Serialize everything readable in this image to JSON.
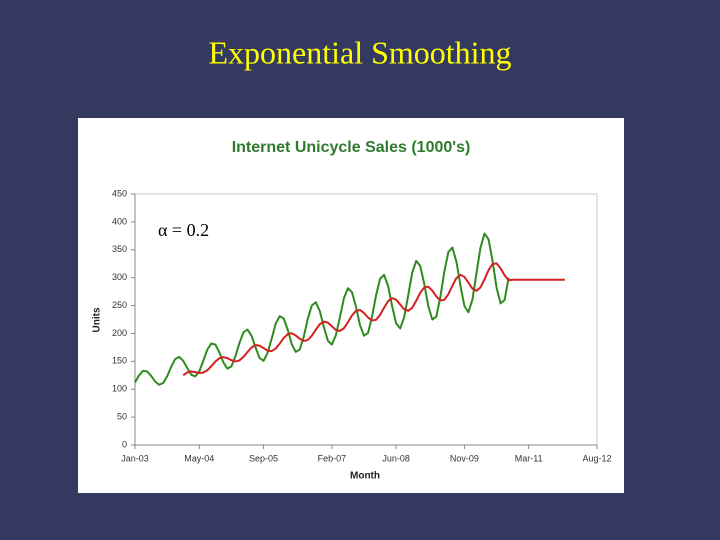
{
  "slide_title": "Exponential Smoothing",
  "chart_data": {
    "type": "line",
    "title": "Internet Unicycle Sales (1000's)",
    "xlabel": "Month",
    "ylabel": "Units",
    "annotation": "α = 0.2",
    "x": [
      "Jan-03",
      "Feb-03",
      "Mar-03",
      "Apr-03",
      "May-03",
      "Jun-03",
      "Jul-03",
      "Aug-03",
      "Sep-03",
      "Oct-03",
      "Nov-03",
      "Dec-03",
      "Jan-04",
      "Feb-04",
      "Mar-04",
      "Apr-04",
      "May-04",
      "Jun-04",
      "Jul-04",
      "Aug-04",
      "Sep-04",
      "Oct-04",
      "Nov-04",
      "Dec-04",
      "Jan-05",
      "Feb-05",
      "Mar-05",
      "Apr-05",
      "May-05",
      "Jun-05",
      "Jul-05",
      "Aug-05",
      "Sep-05",
      "Oct-05",
      "Nov-05",
      "Dec-05",
      "Jan-06",
      "Feb-06",
      "Mar-06",
      "Apr-06",
      "May-06",
      "Jun-06",
      "Jul-06",
      "Aug-06",
      "Sep-06",
      "Oct-06",
      "Nov-06",
      "Dec-06",
      "Jan-07",
      "Feb-07",
      "Mar-07",
      "Apr-07",
      "May-07",
      "Jun-07",
      "Jul-07",
      "Aug-07",
      "Sep-07",
      "Oct-07",
      "Nov-07",
      "Dec-07",
      "Jan-08",
      "Feb-08",
      "Mar-08",
      "Apr-08",
      "May-08",
      "Jun-08",
      "Jul-08",
      "Aug-08",
      "Sep-08",
      "Oct-08",
      "Nov-08",
      "Dec-08",
      "Jan-09",
      "Feb-09",
      "Mar-09",
      "Apr-09",
      "May-09",
      "Jun-09",
      "Jul-09",
      "Aug-09",
      "Sep-09",
      "Oct-09",
      "Nov-09",
      "Dec-09",
      "Jan-10",
      "Feb-10",
      "Mar-10",
      "Apr-10",
      "May-10",
      "Jun-10",
      "Jul-10",
      "Aug-10",
      "Sep-10",
      "Oct-10",
      "Nov-10",
      "Dec-10",
      "Jan-11",
      "Feb-11",
      "Mar-11",
      "Apr-11",
      "May-11",
      "Jun-11",
      "Jul-11",
      "Aug-11",
      "Sep-11",
      "Oct-11",
      "Nov-11",
      "Dec-11"
    ],
    "series": [
      {
        "color": "#2e8b1e",
        "values": [
          112,
          125,
          133,
          132,
          124,
          114,
          108,
          111,
          123,
          140,
          154,
          158,
          151,
          138,
          126,
          123,
          132,
          151,
          171,
          182,
          180,
          166,
          148,
          137,
          141,
          159,
          183,
          202,
          207,
          196,
          175,
          156,
          151,
          165,
          190,
          217,
          231,
          227,
          207,
          181,
          167,
          171,
          194,
          226,
          250,
          256,
          240,
          212,
          187,
          180,
          197,
          229,
          263,
          281,
          274,
          248,
          215,
          196,
          201,
          230,
          268,
          298,
          305,
          285,
          249,
          218,
          209,
          229,
          268,
          309,
          330,
          321,
          289,
          249,
          225,
          230,
          265,
          311,
          346,
          354,
          329,
          286,
          249,
          238,
          261,
          308,
          354,
          379,
          369,
          330,
          282,
          254,
          260,
          300,
          null,
          null,
          null,
          null,
          null,
          null,
          null,
          null,
          null,
          null,
          null,
          null,
          null,
          null
        ]
      },
      {
        "color": "#d42020",
        "values": [
          null,
          null,
          null,
          null,
          null,
          null,
          null,
          null,
          null,
          null,
          null,
          null,
          125,
          130.2,
          131.8,
          130.6,
          129.1,
          129.7,
          134.0,
          141.4,
          149.5,
          155.6,
          157.7,
          155.8,
          152.0,
          149.8,
          151.6,
          157.9,
          166.7,
          174.8,
          179.0,
          178.2,
          173.8,
          169.2,
          168.4,
          172.7,
          181.6,
          191.5,
          198.6,
          200.3,
          196.4,
          190.5,
          186.6,
          188.1,
          195.7,
          206.6,
          216.5,
          221.2,
          219.4,
          212.9,
          206.3,
          204.4,
          209.3,
          220.0,
          232.2,
          240.6,
          242.1,
          236.7,
          228.6,
          223.1,
          224.5,
          233.2,
          246.2,
          258.0,
          263.4,
          260.5,
          252.0,
          243.4,
          240.5,
          246.0,
          258.6,
          272.9,
          282.5,
          283.8,
          276.8,
          266.4,
          259.1,
          260.3,
          270.4,
          285.5,
          299.2,
          305.2,
          301.4,
          290.9,
          280.3,
          276.4,
          282.7,
          297.0,
          313.4,
          324.5,
          325.6,
          316.9,
          304.3,
          295.4,
          296.3,
          296.3,
          296.3,
          296.3,
          296.3,
          296.3,
          296.3,
          296.3,
          296.3,
          296.3,
          296.3,
          296.3,
          296.3,
          296.3
        ]
      }
    ],
    "xlim": [
      "Jan-03",
      "Aug-12"
    ],
    "xticks": [
      "Jan-03",
      "May-04",
      "Sep-05",
      "Feb-07",
      "Jun-08",
      "Nov-09",
      "Mar-11",
      "Aug-12"
    ],
    "ylim": [
      0,
      450
    ],
    "yticks": [
      0,
      50,
      100,
      150,
      200,
      250,
      300,
      350,
      400,
      450
    ]
  }
}
